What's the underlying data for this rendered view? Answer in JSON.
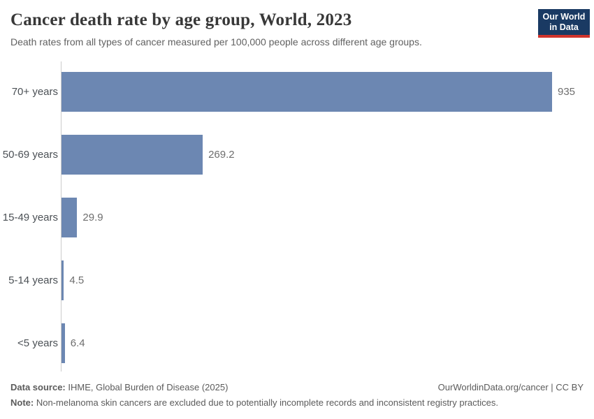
{
  "header": {
    "title": "Cancer death rate by age group, World, 2023",
    "subtitle": "Death rates from all types of cancer measured per 100,000 people across different age groups.",
    "logo": {
      "line1": "Our World",
      "line2": "in Data"
    }
  },
  "chart_data": {
    "type": "bar",
    "orientation": "horizontal",
    "title": "Cancer death rate by age group, World, 2023",
    "categories": [
      "70+ years",
      "50-69 years",
      "15-49 years",
      "5-14 years",
      "<5 years"
    ],
    "values": [
      935,
      269.2,
      29.9,
      4.5,
      6.4
    ],
    "value_labels": [
      "935",
      "269.2",
      "29.9",
      "4.5",
      "6.4"
    ],
    "unit": "deaths per 100,000 people",
    "xlim": [
      0,
      935
    ],
    "grid": false,
    "legend": "none"
  },
  "footer": {
    "source_label": "Data source:",
    "source_text": " IHME, Global Burden of Disease (2025)",
    "rights": "OurWorldinData.org/cancer | CC BY",
    "note_label": "Note:",
    "note_text": " Non-melanoma skin cancers are excluded due to potentially incomplete records and inconsistent registry practices."
  },
  "colors": {
    "bar": "#6c87b2",
    "axis_line": "#cccccc",
    "logo_bg": "#1a3a63",
    "logo_accent": "#d0342c",
    "title_text": "#383838"
  }
}
